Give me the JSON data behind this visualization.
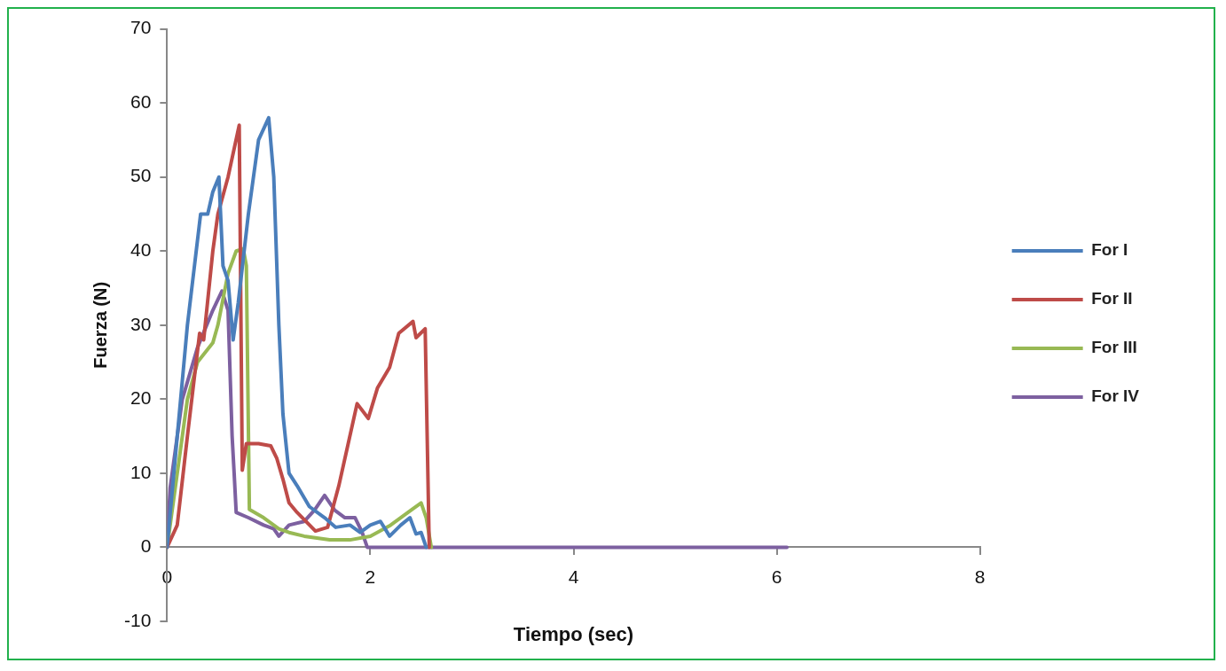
{
  "chart_data": {
    "type": "line",
    "xlabel": "Tiempo (sec)",
    "ylabel": "Fuerza (N)",
    "xlim": [
      0,
      8
    ],
    "xticks": [
      0,
      2,
      4,
      6,
      8
    ],
    "ylim": [
      -10,
      70
    ],
    "yticks": [
      -10,
      0,
      10,
      20,
      30,
      40,
      50,
      60,
      70
    ],
    "grid": false,
    "legend": "right",
    "marker": "none",
    "line_style": "solid",
    "series": [
      {
        "name": "For I",
        "color": "#4a7ebb",
        "x": [
          0,
          0.1,
          0.2,
          0.33,
          0.4,
          0.45,
          0.51,
          0.55,
          0.6,
          0.65,
          0.7,
          0.8,
          0.9,
          1.0,
          1.05,
          1.1,
          1.14,
          1.2,
          1.28,
          1.4,
          1.55,
          1.66,
          1.8,
          1.9,
          2.0,
          2.1,
          2.19,
          2.3,
          2.39,
          2.45,
          2.5,
          2.55
        ],
        "values": [
          0,
          15,
          30,
          45,
          45,
          48,
          50,
          38,
          36,
          28,
          33,
          45,
          55,
          58,
          50,
          30,
          18,
          10,
          8.3,
          5.5,
          4,
          2.7,
          3,
          2,
          3,
          3.5,
          1.5,
          3,
          4,
          1.8,
          2,
          0
        ]
      },
      {
        "name": "For II",
        "color": "#be4b48",
        "x": [
          0,
          0.1,
          0.2,
          0.32,
          0.36,
          0.45,
          0.5,
          0.6,
          0.71,
          0.74,
          0.78,
          0.9,
          1.02,
          1.08,
          1.14,
          1.2,
          1.28,
          1.46,
          1.58,
          1.69,
          1.87,
          1.98,
          2.07,
          2.19,
          2.28,
          2.42,
          2.45,
          2.54,
          2.58
        ],
        "values": [
          0,
          3,
          15,
          28.9,
          28,
          40,
          45,
          50,
          57,
          10.4,
          14,
          14,
          13.7,
          12,
          9.2,
          6,
          4.7,
          2.2,
          2.7,
          8.3,
          19.4,
          17.4,
          21.5,
          24.3,
          28.9,
          30.5,
          28.3,
          29.5,
          0
        ]
      },
      {
        "name": "For III",
        "color": "#98b954",
        "x": [
          0,
          0.1,
          0.2,
          0.3,
          0.45,
          0.5,
          0.6,
          0.68,
          0.75,
          0.78,
          0.81,
          0.95,
          1.1,
          1.2,
          1.35,
          1.6,
          1.8,
          2.0,
          2.2,
          2.4,
          2.5,
          2.55,
          2.6
        ],
        "values": [
          0,
          10,
          20,
          25,
          27.6,
          30,
          37,
          40,
          40.3,
          38,
          5.1,
          4,
          2.5,
          2,
          1.5,
          1,
          1,
          1.5,
          3,
          5,
          6,
          4,
          0
        ]
      },
      {
        "name": "For IV",
        "color": "#7d60a0",
        "x": [
          0,
          0.03,
          0.15,
          0.3,
          0.45,
          0.54,
          0.6,
          0.64,
          0.66,
          0.68,
          0.8,
          0.95,
          1.05,
          1.1,
          1.2,
          1.35,
          1.45,
          1.55,
          1.65,
          1.75,
          1.85,
          1.92,
          1.97,
          3,
          4,
          5,
          6.1
        ],
        "values": [
          0,
          8,
          20,
          27,
          32,
          34.6,
          32,
          15,
          10,
          4.7,
          4,
          3,
          2.5,
          1.5,
          3,
          3.5,
          5,
          7,
          5,
          4,
          4,
          2,
          0,
          0,
          0,
          0,
          0
        ]
      }
    ]
  }
}
